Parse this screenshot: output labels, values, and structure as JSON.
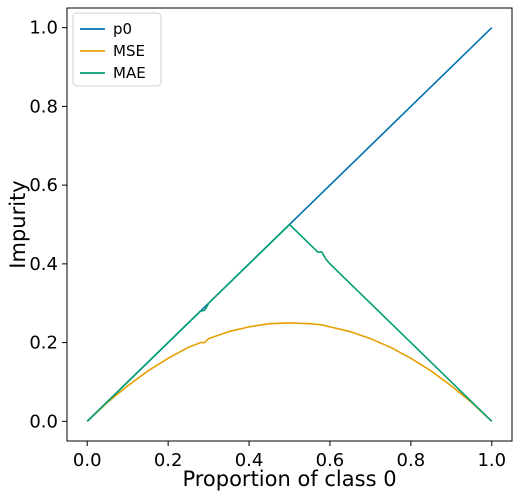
{
  "chart_data": {
    "type": "line",
    "xlabel": "Proportion of class 0",
    "ylabel": "Impurity",
    "xlim": [
      -0.05,
      1.05
    ],
    "ylim": [
      -0.05,
      1.05
    ],
    "x_ticks": [
      0.0,
      0.2,
      0.4,
      0.6,
      0.8,
      1.0
    ],
    "x_tick_labels": [
      "0.0",
      "0.2",
      "0.4",
      "0.6",
      "0.8",
      "1.0"
    ],
    "y_ticks": [
      0.0,
      0.2,
      0.4,
      0.6,
      0.8,
      1.0
    ],
    "y_tick_labels": [
      "0.0",
      "0.2",
      "0.4",
      "0.6",
      "0.8",
      "1.0"
    ],
    "grid": false,
    "legend_position": "top-left",
    "series": [
      {
        "name": "p0",
        "color": "#0072B2",
        "x": [
          0.0,
          1.0
        ],
        "y": [
          0.0,
          1.0
        ]
      },
      {
        "name": "MSE",
        "color": "#E69F00",
        "x": [
          0.0,
          0.05,
          0.1,
          0.15,
          0.2,
          0.25,
          0.28,
          0.29,
          0.3,
          0.35,
          0.4,
          0.45,
          0.5,
          0.55,
          0.58,
          0.6,
          0.65,
          0.7,
          0.75,
          0.8,
          0.85,
          0.9,
          0.95,
          1.0
        ],
        "y": [
          0.0,
          0.048,
          0.09,
          0.128,
          0.16,
          0.188,
          0.2,
          0.2,
          0.21,
          0.228,
          0.24,
          0.248,
          0.25,
          0.248,
          0.245,
          0.24,
          0.228,
          0.21,
          0.188,
          0.16,
          0.128,
          0.09,
          0.048,
          0.0
        ]
      },
      {
        "name": "MAE",
        "color": "#009E73",
        "x": [
          0.0,
          0.28,
          0.29,
          0.295,
          0.3,
          0.35,
          0.4,
          0.45,
          0.5,
          0.55,
          0.57,
          0.58,
          0.59,
          0.6,
          0.65,
          0.7,
          0.75,
          0.8,
          0.85,
          0.9,
          0.95,
          1.0
        ],
        "y": [
          0.0,
          0.28,
          0.282,
          0.29,
          0.3,
          0.35,
          0.4,
          0.45,
          0.5,
          0.45,
          0.43,
          0.43,
          0.412,
          0.4,
          0.35,
          0.3,
          0.25,
          0.2,
          0.15,
          0.1,
          0.05,
          0.0
        ]
      }
    ]
  }
}
